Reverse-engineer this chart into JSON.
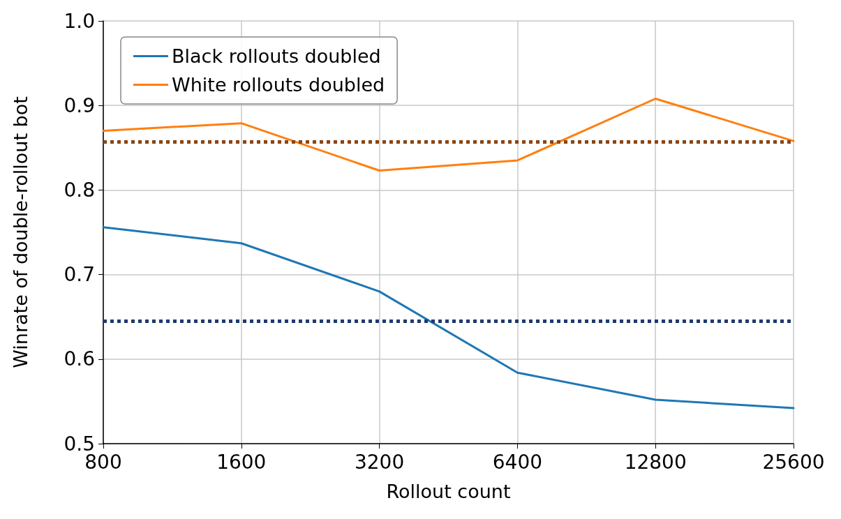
{
  "chart_data": {
    "type": "line",
    "xlabel": "Rollout count",
    "ylabel": "Winrate of double-rollout bot",
    "categories": [
      "800",
      "1600",
      "3200",
      "6400",
      "12800",
      "25600"
    ],
    "series": [
      {
        "name": "Black rollouts doubled",
        "color": "#1f77b4",
        "values": [
          0.756,
          0.737,
          0.68,
          0.584,
          0.552,
          0.542
        ]
      },
      {
        "name": "White rollouts doubled",
        "color": "#ff7f0e",
        "values": [
          0.87,
          0.879,
          0.823,
          0.835,
          0.908,
          0.858
        ]
      }
    ],
    "ylim": [
      0.5,
      1.0
    ],
    "yticks": [
      {
        "value": 0.5,
        "label": "0.5"
      },
      {
        "value": 0.6,
        "label": "0.6"
      },
      {
        "value": 0.7,
        "label": "0.7"
      },
      {
        "value": 0.8,
        "label": "0.8"
      },
      {
        "value": 0.9,
        "label": "0.9"
      },
      {
        "value": 1.0,
        "label": "1.0"
      }
    ],
    "ref_lines": [
      {
        "axis": "y",
        "value": 0.857,
        "color": "#8b4513",
        "line_style": "dotted"
      },
      {
        "axis": "y",
        "value": 0.645,
        "color": "#1f3a6e",
        "line_style": "dotted"
      }
    ],
    "grid": true,
    "legend": "top left",
    "marker": "none",
    "line_style": "solid"
  }
}
